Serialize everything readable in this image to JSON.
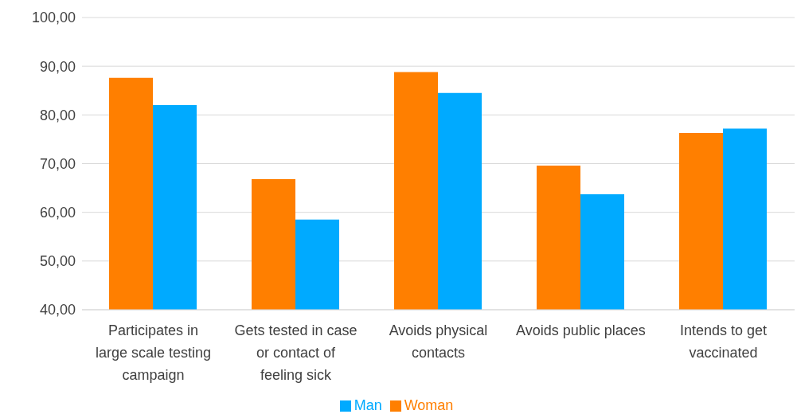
{
  "chart_data": {
    "type": "bar",
    "categories": [
      "Participates in large scale testing campaign",
      "Gets tested in case or contact of feeling sick",
      "Avoids physical contacts",
      "Avoids public places",
      "Intends to get vaccinated"
    ],
    "series": [
      {
        "name": "Woman",
        "color": "#ff7f00",
        "values": [
          87.6,
          66.8,
          88.8,
          69.6,
          76.3
        ]
      },
      {
        "name": "Man",
        "color": "#00aaff",
        "values": [
          82.0,
          58.5,
          84.5,
          63.7,
          77.2
        ]
      }
    ],
    "ylim": [
      40,
      100
    ],
    "yticks": [
      {
        "value": 40,
        "label": "40,00"
      },
      {
        "value": 50,
        "label": "50,00"
      },
      {
        "value": 60,
        "label": "60,00"
      },
      {
        "value": 70,
        "label": "70,00"
      },
      {
        "value": 80,
        "label": "80,00"
      },
      {
        "value": 90,
        "label": "90,00"
      },
      {
        "value": 100,
        "label": "100,00"
      }
    ],
    "grid": "y",
    "legend": "bottom"
  }
}
